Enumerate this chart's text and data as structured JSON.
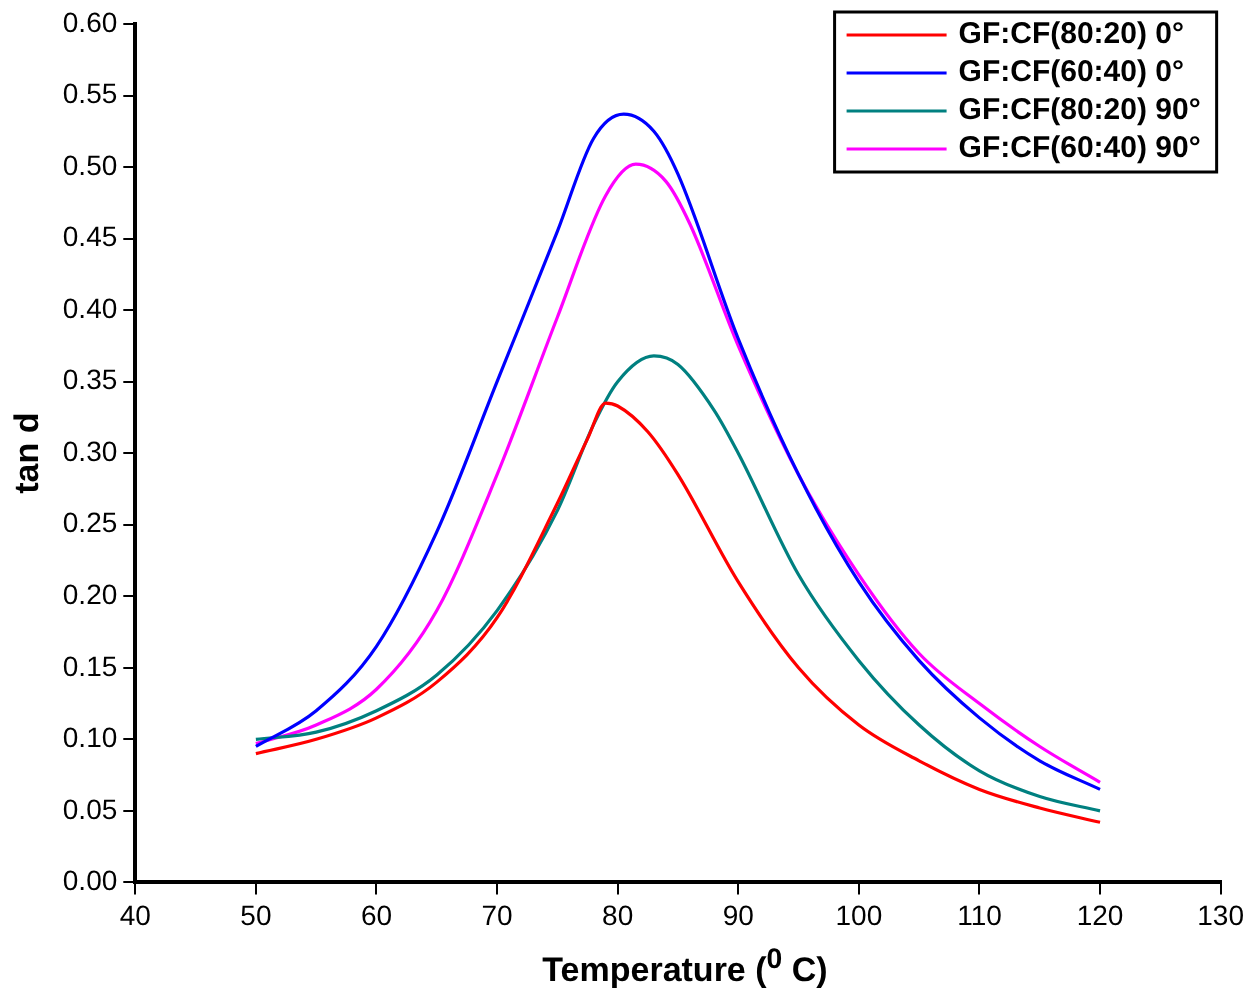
{
  "chart_data": {
    "type": "line",
    "xlabel": "Temperature ($^{0}$ C)",
    "ylabel": "tan d",
    "xlim": [
      40,
      130
    ],
    "xticks": [
      40,
      50,
      60,
      70,
      80,
      90,
      100,
      110,
      120,
      130
    ],
    "ylim": [
      0,
      0.6
    ],
    "yticks": [
      {
        "value": 0,
        "label": "0.00"
      },
      {
        "value": 0.05,
        "label": "0.05"
      },
      {
        "value": 0.1,
        "label": "0.10"
      },
      {
        "value": 0.15,
        "label": "0.15"
      },
      {
        "value": 0.2,
        "label": "0.20"
      },
      {
        "value": 0.25,
        "label": "0.25"
      },
      {
        "value": 0.3,
        "label": "0.30"
      },
      {
        "value": 0.35,
        "label": "0.35"
      },
      {
        "value": 0.4,
        "label": "0.40"
      },
      {
        "value": 0.45,
        "label": "0.45"
      },
      {
        "value": 0.5,
        "label": "0.50"
      },
      {
        "value": 0.55,
        "label": "0.55"
      },
      {
        "value": 0.6,
        "label": "0.60"
      }
    ],
    "grid": false,
    "legend": "top right",
    "marker": "none",
    "line_style": "solid",
    "series": [
      {
        "name": "GF:CF(80:20) 0°",
        "color": "#ff0000",
        "x": [
          50,
          55,
          60,
          65,
          70,
          75,
          77.5,
          79,
          80,
          82.5,
          85,
          90,
          95,
          100,
          105,
          110,
          115,
          120
        ],
        "values": [
          0.09,
          0.1,
          0.115,
          0.14,
          0.185,
          0.265,
          0.31,
          0.335,
          0.333,
          0.315,
          0.285,
          0.21,
          0.15,
          0.11,
          0.085,
          0.065,
          0.052,
          0.042
        ]
      },
      {
        "name": "GF:CF(60:40) 0°",
        "color": "#0000ff",
        "x": [
          50,
          55,
          60,
          65,
          70,
          75,
          78,
          80.5,
          83,
          85,
          90,
          95,
          100,
          105,
          110,
          115,
          120
        ],
        "values": [
          0.095,
          0.12,
          0.165,
          0.245,
          0.35,
          0.455,
          0.52,
          0.537,
          0.525,
          0.495,
          0.38,
          0.285,
          0.21,
          0.155,
          0.115,
          0.085,
          0.065
        ]
      },
      {
        "name": "GF:CF(80:20) 90°",
        "color": "#008080",
        "x": [
          50,
          55,
          60,
          65,
          70,
          75,
          78,
          80,
          83,
          85,
          88,
          90,
          95,
          100,
          105,
          110,
          115,
          120
        ],
        "values": [
          0.1,
          0.105,
          0.12,
          0.145,
          0.19,
          0.26,
          0.32,
          0.35,
          0.368,
          0.362,
          0.33,
          0.3,
          0.215,
          0.155,
          0.11,
          0.078,
          0.06,
          0.05
        ]
      },
      {
        "name": "GF:CF(60:40) 90°",
        "color": "#ff00ff",
        "x": [
          50,
          55,
          60,
          65,
          70,
          75,
          79,
          81.5,
          84,
          86,
          90,
          95,
          100,
          105,
          110,
          115,
          120
        ],
        "values": [
          0.097,
          0.11,
          0.135,
          0.19,
          0.285,
          0.395,
          0.48,
          0.502,
          0.49,
          0.46,
          0.375,
          0.285,
          0.215,
          0.16,
          0.125,
          0.095,
          0.07
        ]
      }
    ]
  }
}
